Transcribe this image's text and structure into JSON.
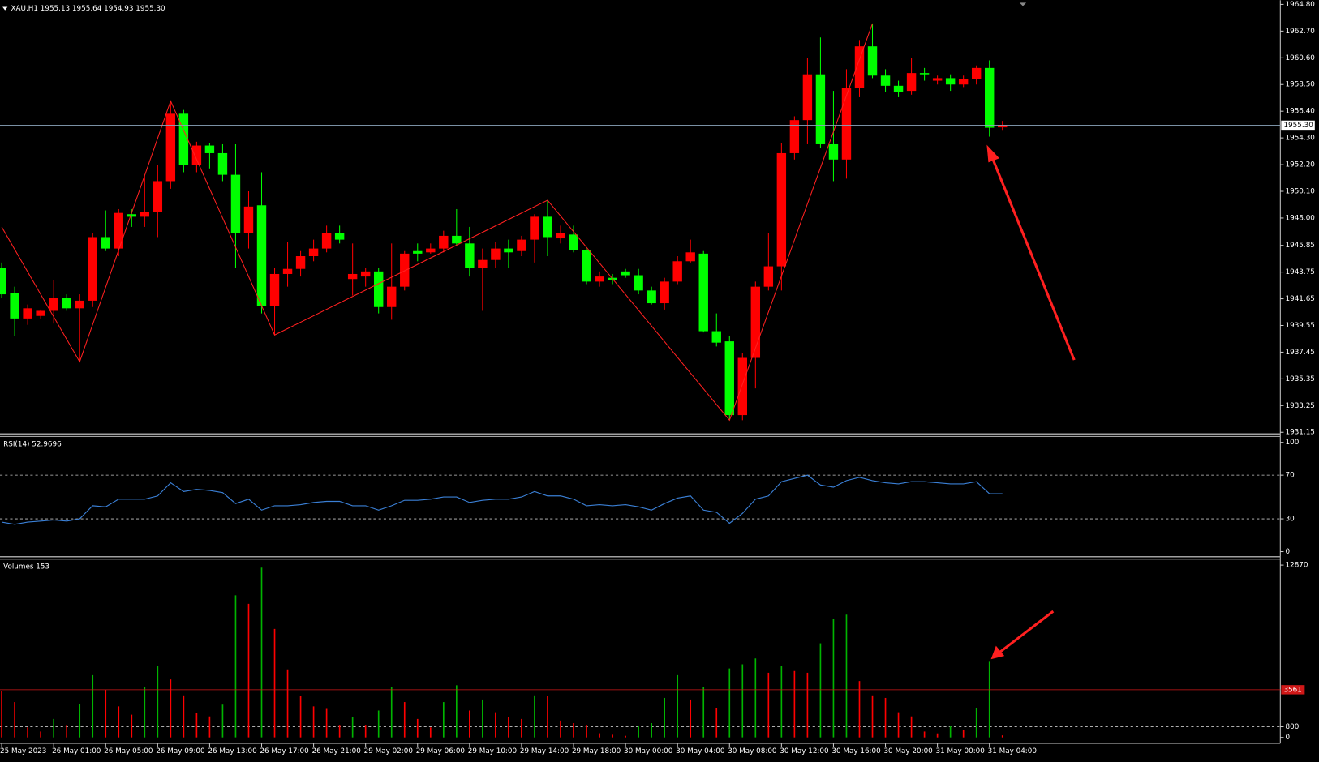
{
  "chart_data": [
    {
      "type": "candlestick",
      "title": "XAU,H1  1955.13 1955.64 1954.93 1955.30",
      "categories": [
        "25 May 2023",
        null,
        null,
        null,
        "26 May 01:00",
        null,
        null,
        null,
        "26 May 05:00",
        null,
        null,
        null,
        "26 May 09:00",
        null,
        null,
        null,
        "26 May 13:00",
        null,
        null,
        null,
        "26 May 17:00",
        null,
        null,
        null,
        "26 May 21:00",
        null,
        null,
        null,
        "29 May 02:00",
        null,
        null,
        null,
        "29 May 06:00",
        null,
        null,
        null,
        "29 May 10:00",
        null,
        null,
        null,
        "29 May 14:00",
        null,
        null,
        null,
        "29 May 18:00",
        null,
        null,
        null,
        "30 May 00:00",
        null,
        null,
        null,
        "30 May 04:00",
        null,
        null,
        null,
        "30 May 08:00",
        null,
        null,
        null,
        "30 May 12:00",
        null,
        null,
        null,
        "30 May 16:00",
        null,
        null,
        null,
        "30 May 20:00",
        null,
        null,
        null,
        "31 May 00:00",
        null,
        null,
        null,
        "31 May 04:00",
        null
      ],
      "open": [
        1944.1,
        1942.1,
        1940.1,
        1940.3,
        1940.7,
        1941.7,
        1940.9,
        1941.5,
        1946.5,
        1945.6,
        1948.3,
        1948.1,
        1948.5,
        1950.9,
        1956.2,
        1952.2,
        1953.7,
        1953.1,
        1951.4,
        1946.8,
        1949.0,
        1941.1,
        1943.6,
        1944.0,
        1945.0,
        1945.6,
        1946.8,
        1943.2,
        1943.4,
        1943.8,
        1941.0,
        1942.6,
        1945.4,
        1945.3,
        1945.6,
        1946.6,
        1946.0,
        1944.1,
        1944.7,
        1945.6,
        1945.4,
        1946.3,
        1948.1,
        1946.4,
        1946.7,
        1945.5,
        1943.0,
        1943.3,
        1943.8,
        1943.5,
        1942.3,
        1941.3,
        1943.0,
        1944.6,
        1945.2,
        1939.1,
        1938.3,
        1932.5,
        1937.0,
        1942.6,
        1944.2,
        1953.1,
        1955.7,
        1959.3,
        1953.8,
        1952.6,
        1958.2,
        1961.5,
        1959.2,
        1958.4,
        1958.0,
        1959.4,
        1958.8,
        1959.0,
        1958.5,
        1958.9,
        1959.8,
        1955.13
      ],
      "high": [
        1944.5,
        1942.6,
        1941.2,
        1940.8,
        1943.1,
        1942.0,
        1942.0,
        1946.8,
        1948.6,
        1948.7,
        1948.7,
        1951.3,
        1952.2,
        1957.2,
        1956.5,
        1954.0,
        1953.9,
        1953.8,
        1953.8,
        1950.1,
        1951.6,
        1944.1,
        1946.1,
        1945.4,
        1946.3,
        1947.4,
        1947.4,
        1946.0,
        1944.1,
        1944.1,
        1946.0,
        1945.4,
        1946.0,
        1946.0,
        1947.0,
        1948.7,
        1947.3,
        1945.6,
        1946.1,
        1946.3,
        1946.6,
        1948.3,
        1949.4,
        1947.4,
        1947.4,
        1945.6,
        1943.8,
        1943.6,
        1944.0,
        1944.0,
        1942.6,
        1943.3,
        1945.0,
        1946.3,
        1945.4,
        1940.5,
        1938.7,
        1937.4,
        1943.0,
        1946.8,
        1953.9,
        1956.0,
        1960.6,
        1962.2,
        1958.0,
        1959.7,
        1962.0,
        1963.3,
        1959.7,
        1958.8,
        1960.6,
        1959.8,
        1959.2,
        1959.3,
        1959.2,
        1960.0,
        1960.4,
        1955.64
      ],
      "low": [
        1941.7,
        1938.7,
        1939.6,
        1940.1,
        1939.7,
        1940.7,
        1936.7,
        1941.0,
        1945.4,
        1945.0,
        1947.3,
        1947.3,
        1946.5,
        1950.3,
        1951.6,
        1951.6,
        1951.9,
        1950.9,
        1944.1,
        1945.6,
        1940.5,
        1938.8,
        1942.6,
        1943.4,
        1944.6,
        1945.3,
        1946.0,
        1941.9,
        1942.6,
        1940.5,
        1940.0,
        1942.3,
        1944.6,
        1945.2,
        1945.3,
        1945.8,
        1943.4,
        1940.7,
        1944.1,
        1944.1,
        1945.0,
        1944.5,
        1945.0,
        1946.0,
        1945.3,
        1942.8,
        1942.6,
        1942.8,
        1943.3,
        1942.0,
        1941.2,
        1940.8,
        1942.8,
        1944.5,
        1939.0,
        1937.9,
        1932.1,
        1932.1,
        1934.6,
        1942.3,
        1942.3,
        1952.6,
        1953.8,
        1953.5,
        1950.9,
        1951.1,
        1957.5,
        1959.0,
        1957.9,
        1957.5,
        1957.7,
        1958.8,
        1958.5,
        1958.0,
        1958.3,
        1958.5,
        1954.4,
        1954.93
      ],
      "close": [
        1942.0,
        1940.1,
        1940.9,
        1940.7,
        1941.7,
        1940.9,
        1941.5,
        1946.5,
        1945.6,
        1948.4,
        1948.1,
        1948.5,
        1950.9,
        1956.2,
        1952.2,
        1953.7,
        1953.1,
        1951.4,
        1946.8,
        1948.9,
        1941.1,
        1943.6,
        1944.0,
        1945.0,
        1945.6,
        1946.8,
        1946.3,
        1943.6,
        1943.8,
        1941.0,
        1942.6,
        1945.2,
        1945.2,
        1945.6,
        1946.6,
        1946.0,
        1944.1,
        1944.7,
        1945.6,
        1945.3,
        1946.3,
        1948.1,
        1946.5,
        1946.8,
        1945.5,
        1943.0,
        1943.4,
        1943.1,
        1943.5,
        1942.3,
        1941.3,
        1943.0,
        1944.6,
        1945.3,
        1939.1,
        1938.2,
        1932.5,
        1937.0,
        1942.6,
        1944.2,
        1953.1,
        1955.7,
        1959.3,
        1953.8,
        1952.6,
        1958.2,
        1961.5,
        1959.2,
        1958.4,
        1957.9,
        1959.4,
        1959.3,
        1959.0,
        1958.5,
        1958.9,
        1959.8,
        1955.1,
        1955.3
      ],
      "up_color": "#ff0000",
      "down_color": "#00ff00",
      "ylim": [
        1931.15,
        1964.8
      ],
      "yticks": [
        {
          "value": 1964.8,
          "label": "1964.80"
        },
        {
          "value": 1962.7,
          "label": "1962.70"
        },
        {
          "value": 1960.6,
          "label": "1960.60"
        },
        {
          "value": 1958.5,
          "label": "1958.50"
        },
        {
          "value": 1956.4,
          "label": "1956.40"
        },
        {
          "value": 1954.3,
          "label": "1954.30"
        },
        {
          "value": 1952.2,
          "label": "1952.20"
        },
        {
          "value": 1950.1,
          "label": "1950.10"
        },
        {
          "value": 1948.0,
          "label": "1948.00"
        },
        {
          "value": 1945.85,
          "label": "1945.85"
        },
        {
          "value": 1943.75,
          "label": "1943.75"
        },
        {
          "value": 1941.65,
          "label": "1941.65"
        },
        {
          "value": 1939.55,
          "label": "1939.55"
        },
        {
          "value": 1937.45,
          "label": "1937.45"
        },
        {
          "value": 1935.35,
          "label": "1935.35"
        },
        {
          "value": 1933.25,
          "label": "1933.25"
        },
        {
          "value": 1931.15,
          "label": "1931.15"
        }
      ],
      "current_price": {
        "value": 1955.3,
        "label": "1955.30"
      },
      "zigzag": {
        "color": "#ff2020",
        "indices": [
          0,
          6,
          13,
          21,
          42,
          56,
          67
        ],
        "values": [
          1947.3,
          1936.7,
          1957.2,
          1938.8,
          1949.4,
          1932.1,
          1963.3
        ]
      },
      "grid": false
    },
    {
      "type": "line",
      "title": "RSI(14) 52.9696",
      "color": "#3a7fd5",
      "values": [
        27,
        25,
        27,
        28,
        29,
        28,
        30,
        42,
        41,
        48,
        48,
        48,
        51,
        63,
        55,
        57,
        56,
        54,
        44,
        48,
        38,
        42,
        42,
        43,
        45,
        46,
        46,
        42,
        42,
        38,
        42,
        47,
        47,
        48,
        50,
        50,
        45,
        47,
        48,
        48,
        50,
        55,
        51,
        51,
        48,
        42,
        43,
        42,
        43,
        41,
        38,
        44,
        49,
        51,
        38,
        36,
        26,
        35,
        48,
        51,
        64,
        67,
        70,
        61,
        59,
        65,
        68,
        65,
        63,
        62,
        64,
        64,
        63,
        62,
        62,
        64,
        53,
        52.9696
      ],
      "ylim": [
        0,
        100
      ],
      "yticks": [
        100,
        70,
        30,
        0
      ],
      "grid": "inner-dotted"
    },
    {
      "type": "bar",
      "title": "Volumes 153",
      "up_color": "#00b400",
      "down_color": "#ff0000",
      "values": [
        3450,
        2640,
        750,
        440,
        1380,
        940,
        2510,
        4650,
        3580,
        2320,
        1700,
        3770,
        5340,
        4330,
        3140,
        1820,
        1570,
        2450,
        10610,
        9980,
        12680,
        8100,
        5080,
        3080,
        2320,
        2130,
        940,
        1510,
        940,
        2010,
        3770,
        2640,
        1380,
        750,
        2640,
        3890,
        2010,
        2830,
        1880,
        1510,
        1380,
        3140,
        3120,
        1260,
        1070,
        940,
        310,
        200,
        120,
        880,
        1070,
        2950,
        4650,
        2830,
        3770,
        2200,
        5150,
        5460,
        5900,
        4830,
        5340,
        4960,
        4830,
        7030,
        8850,
        9170,
        4210,
        3140,
        2950,
        1880,
        1570,
        440,
        300,
        880,
        570,
        2200,
        5650,
        153
      ],
      "ylim": [
        0,
        12870
      ],
      "yticks": [
        12870,
        800,
        0
      ],
      "grid": "inner-dotted",
      "level": 3561,
      "level_color": "#d01818"
    }
  ]
}
